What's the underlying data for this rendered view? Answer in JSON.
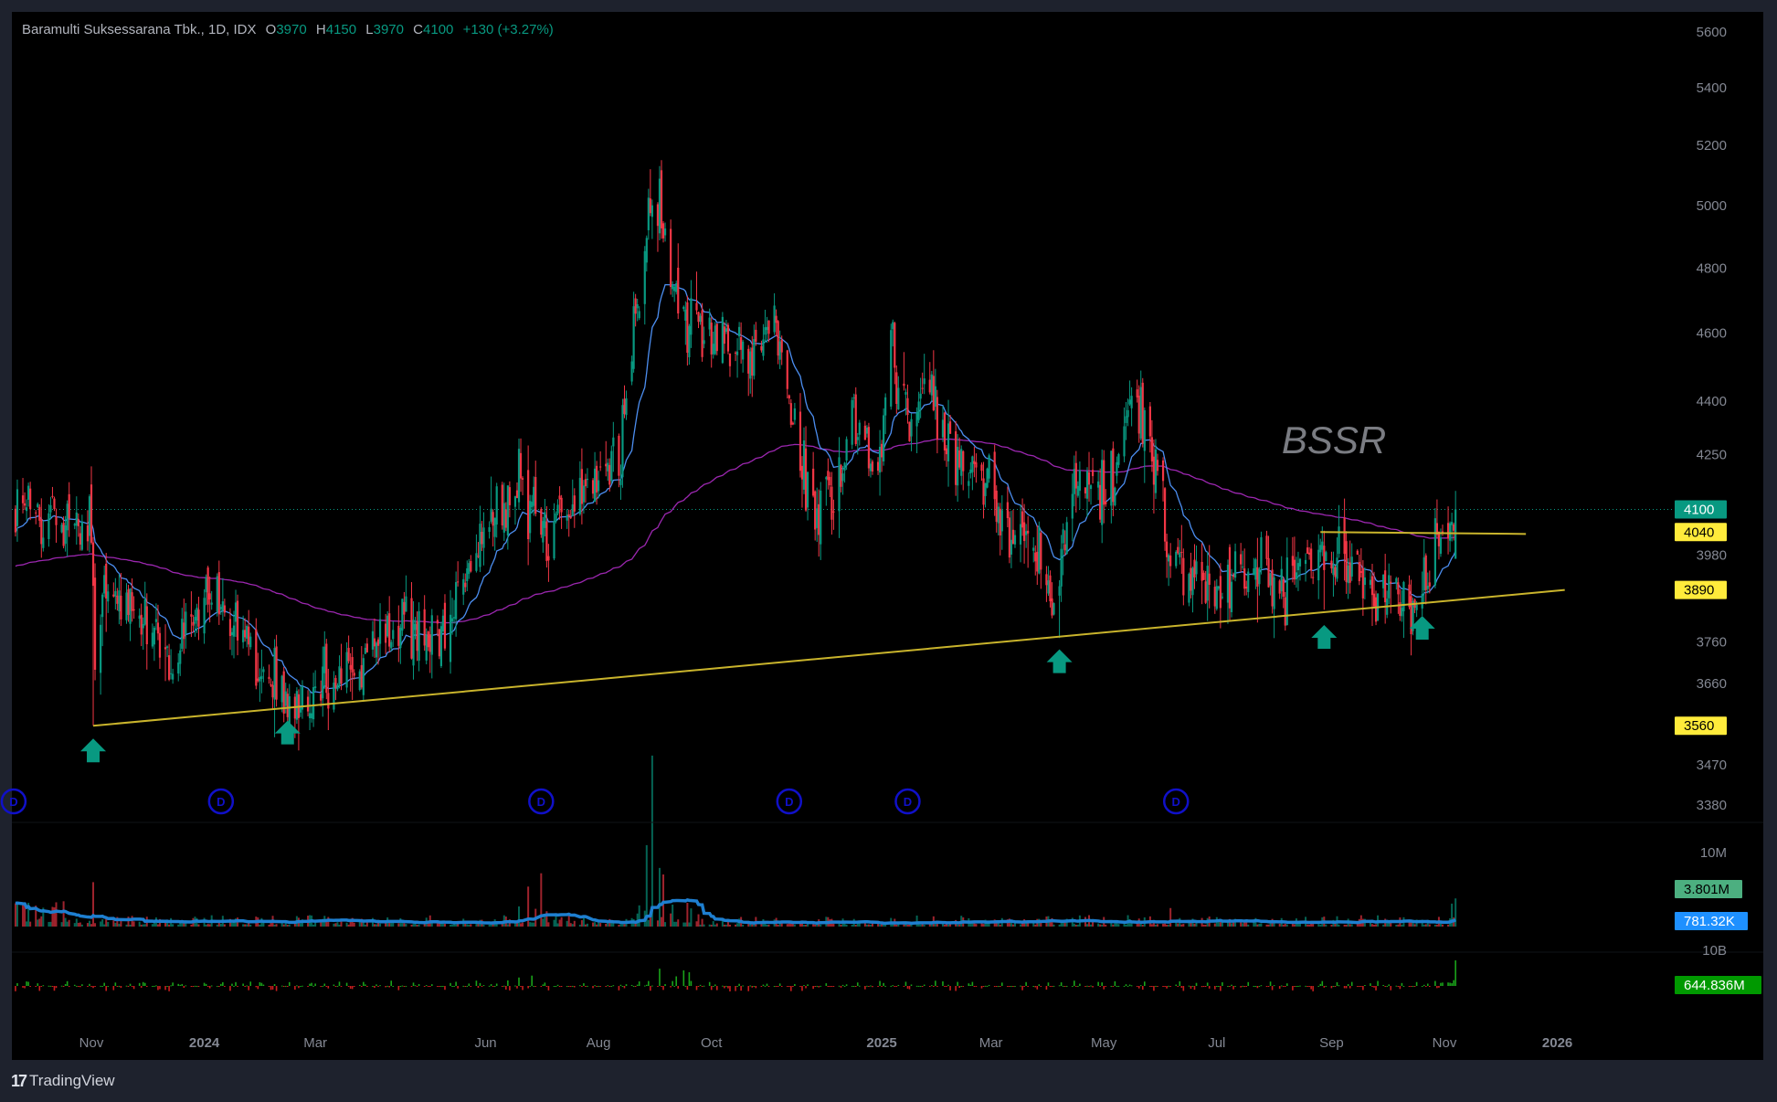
{
  "header": {
    "symbol_name": "Baramulti Suksessarana Tbk., 1D, IDX",
    "open_label": "O",
    "open": "3970",
    "high_label": "H",
    "high": "4150",
    "low_label": "L",
    "low": "3970",
    "close_label": "C",
    "close": "4100",
    "change": "+130 (+3.27%)"
  },
  "watermark": "BSSR",
  "footer": {
    "brand": "TradingView",
    "logo_glyph": "17"
  },
  "colors": {
    "up": "#089981",
    "down": "#f23645",
    "ema_fast": "#4c8ef0",
    "ema_slow": "#9c27b0",
    "trendline": "#c9b42c",
    "arrow": "#089981",
    "dividend": "#1010c8",
    "badge_last": "#089981",
    "badge_line": "#ffeb3b",
    "volume_badge": "#4caf80",
    "volume_ma_badge": "#1e90ff",
    "flow_badge": "#009900",
    "background": "#000000",
    "frame": "#1e222d"
  },
  "price_axis": {
    "scale": "log",
    "ticks": [
      "5600",
      "5400",
      "5200",
      "5000",
      "4800",
      "4600",
      "4400",
      "4250",
      "3980",
      "3760",
      "3660",
      "3470",
      "3380"
    ],
    "badges": [
      {
        "value": "4100",
        "kind": "last"
      },
      {
        "value": "4040",
        "kind": "line"
      },
      {
        "value": "3890",
        "kind": "line"
      },
      {
        "value": "3560",
        "kind": "line"
      }
    ]
  },
  "volume_axis": {
    "tick": "10M",
    "badges": [
      {
        "value": "3.801M",
        "kind": "volume"
      },
      {
        "value": "781.32K",
        "kind": "volume_ma"
      }
    ]
  },
  "flow_axis": {
    "tick": "10B",
    "badges": [
      {
        "value": "644.836M",
        "kind": "flow"
      }
    ]
  },
  "time_axis": [
    {
      "label": "Nov",
      "date": "2023-11-01",
      "year": false
    },
    {
      "label": "2024",
      "date": "2024-01-01",
      "year": true
    },
    {
      "label": "Mar",
      "date": "2024-03-01",
      "year": false
    },
    {
      "label": "Jun",
      "date": "2024-06-01",
      "year": false
    },
    {
      "label": "Aug",
      "date": "2024-08-01",
      "year": false
    },
    {
      "label": "Oct",
      "date": "2024-10-01",
      "year": false
    },
    {
      "label": "2025",
      "date": "2025-01-01",
      "year": true
    },
    {
      "label": "Mar",
      "date": "2025-03-01",
      "year": false
    },
    {
      "label": "May",
      "date": "2025-05-01",
      "year": false
    },
    {
      "label": "Jul",
      "date": "2025-07-01",
      "year": false
    },
    {
      "label": "Sep",
      "date": "2025-09-01",
      "year": false
    },
    {
      "label": "Nov",
      "date": "2025-11-01",
      "year": false
    },
    {
      "label": "2026",
      "date": "2026-01-01",
      "year": true
    }
  ],
  "chart_data": {
    "type": "candlestick",
    "title": "Baramulti Suksessarana Tbk., 1D, IDX",
    "ylim": [
      3330,
      5650
    ],
    "y_scale": "log",
    "grid": false,
    "close_path": [
      [
        "2023-09-21",
        4100
      ],
      [
        "2023-11-01",
        4040
      ],
      [
        "2023-11-03",
        3700
      ],
      [
        "2023-11-07",
        3890
      ],
      [
        "2023-12-13",
        3735
      ],
      [
        "2024-01-03",
        3900
      ],
      [
        "2024-02-13",
        3620
      ],
      [
        "2024-03-08",
        3640
      ],
      [
        "2024-04-11",
        3800
      ],
      [
        "2024-05-09",
        3780
      ],
      [
        "2024-05-27",
        3975
      ],
      [
        "2024-06-20",
        4160
      ],
      [
        "2024-07-03",
        4040
      ],
      [
        "2024-07-28",
        4180
      ],
      [
        "2024-08-12",
        4266
      ],
      [
        "2024-08-18",
        4477
      ],
      [
        "2024-08-27",
        4930
      ],
      [
        "2024-09-01",
        5050
      ],
      [
        "2024-09-09",
        4780
      ],
      [
        "2024-09-18",
        4630
      ],
      [
        "2024-10-10",
        4570
      ],
      [
        "2024-10-28",
        4547
      ],
      [
        "2024-11-03",
        4680
      ],
      [
        "2024-11-16",
        4316
      ],
      [
        "2024-11-23",
        4110
      ],
      [
        "2024-12-07",
        4130
      ],
      [
        "2024-12-16",
        4370
      ],
      [
        "2024-12-29",
        4185
      ],
      [
        "2025-01-07",
        4576
      ],
      [
        "2025-01-16",
        4340
      ],
      [
        "2025-01-22",
        4420
      ],
      [
        "2025-02-10",
        4230
      ],
      [
        "2025-02-21",
        4215
      ],
      [
        "2025-03-06",
        4090
      ],
      [
        "2025-03-24",
        4000
      ],
      [
        "2025-04-03",
        3880
      ],
      [
        "2025-04-15",
        4150
      ],
      [
        "2025-04-24",
        4200
      ],
      [
        "2025-05-04",
        4135
      ],
      [
        "2025-05-13",
        4370
      ],
      [
        "2025-05-22",
        4390
      ],
      [
        "2025-05-29",
        4228
      ],
      [
        "2025-06-07",
        4000
      ],
      [
        "2025-06-19",
        3900
      ],
      [
        "2025-07-05",
        3890
      ],
      [
        "2025-07-20",
        3960
      ],
      [
        "2025-08-08",
        3890
      ],
      [
        "2025-08-26",
        3990
      ],
      [
        "2025-09-20",
        3900
      ],
      [
        "2025-10-18",
        3850
      ],
      [
        "2025-10-27",
        3980
      ],
      [
        "2025-11-07",
        4100
      ]
    ],
    "extremes": [
      [
        "2023-11-02",
        "low",
        3560
      ],
      [
        "2024-08-29",
        "high",
        5120
      ],
      [
        "2025-04-07",
        "low",
        3770
      ],
      [
        "2025-08-28",
        "low",
        3840
      ],
      [
        "2025-11-07",
        "high",
        4150
      ]
    ],
    "last_bar": {
      "open": 3970,
      "high": 4150,
      "low": 3970,
      "close": 4100
    },
    "indicators": [
      {
        "kind": "ema",
        "period": 20
      },
      {
        "kind": "ema",
        "period": 200
      }
    ],
    "volume_last": "3.801M",
    "volume_ma_last": "781.32K",
    "volume_spikes": [
      [
        "2023-11-02",
        6.0
      ],
      [
        "2024-06-24",
        3.0
      ],
      [
        "2024-07-01",
        4.0
      ],
      [
        "2024-08-27",
        5.0
      ],
      [
        "2024-08-30",
        10.5
      ],
      [
        "2024-09-03",
        3.6
      ],
      [
        "2024-09-05",
        3.2
      ],
      [
        "2025-06-06",
        2.5
      ],
      [
        "2025-11-05",
        3.1
      ],
      [
        "2025-11-07",
        3.801
      ]
    ],
    "flow_last": "644.836M",
    "annotations": {
      "support_trendline": [
        [
          "2023-11-02",
          3560
        ],
        [
          "2026-01-05",
          3890
        ]
      ],
      "resistance_line": [
        [
          "2025-08-26",
          4040
        ],
        [
          "2025-12-15",
          4035
        ]
      ],
      "arrows": [
        "2023-11-02",
        "2024-02-15",
        "2025-04-07",
        "2025-08-28",
        "2025-10-20"
      ],
      "dividend_markers": [
        "2023-09-20",
        "2024-01-10",
        "2024-07-01",
        "2024-11-12",
        "2025-01-15",
        "2025-06-09"
      ],
      "dividend_label": "D"
    }
  }
}
